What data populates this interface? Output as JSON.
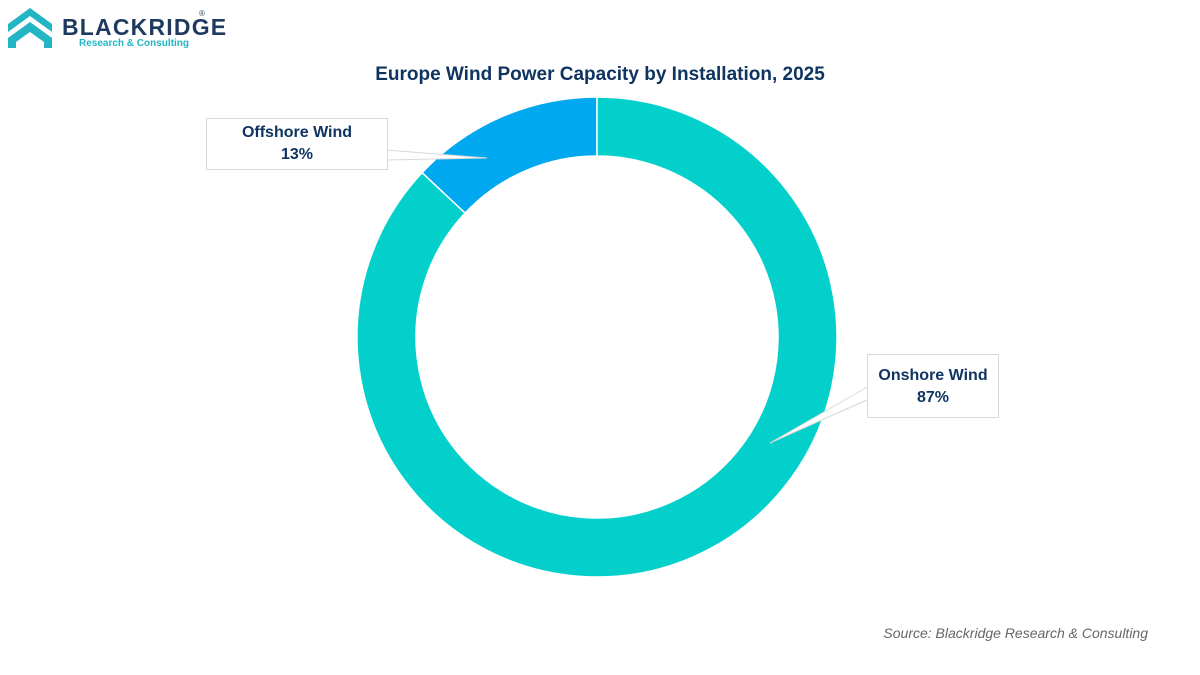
{
  "branding": {
    "name": "BLACKRIDGE",
    "registered_mark": "®",
    "tagline": "Research & Consulting",
    "colors": {
      "navy": "#1e3a5f",
      "teal": "#23b5c4"
    }
  },
  "chart_data": {
    "type": "pie",
    "variant": "donut",
    "title": "Europe Wind Power Capacity by Installation, 2025",
    "series": [
      {
        "label": "Offshore Wind",
        "value": 13,
        "value_label": "13%",
        "color": "#00a8f0"
      },
      {
        "label": "Onshore Wind",
        "value": 87,
        "value_label": "87%",
        "color": "#03d0cb"
      }
    ],
    "legend": "none",
    "data_labels": "callouts"
  },
  "source": "Source: Blackridge Research & Consulting"
}
